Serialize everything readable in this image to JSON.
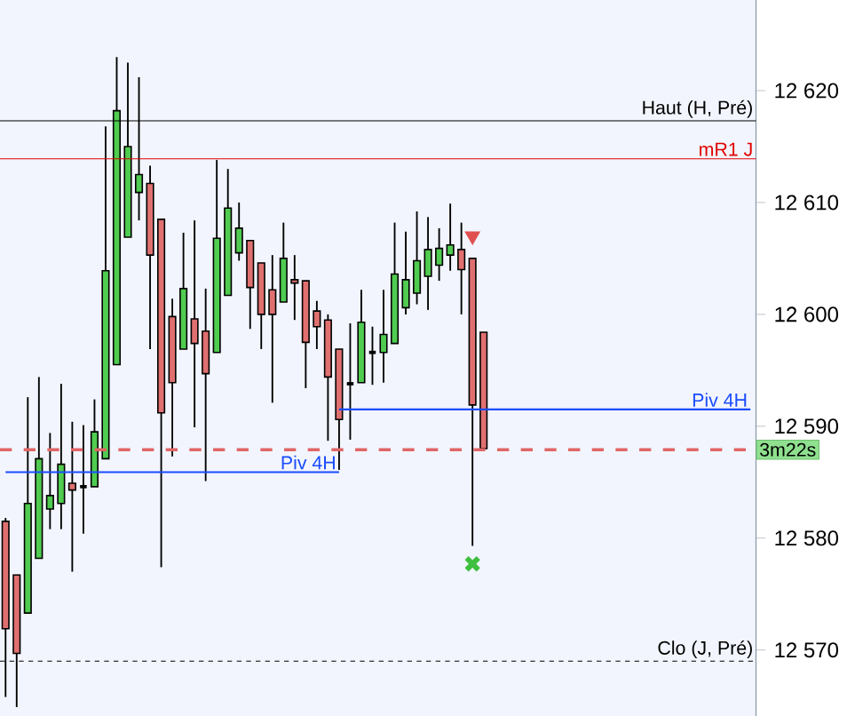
{
  "chart_data": {
    "type": "candlestick",
    "categories": [
      null,
      null,
      null,
      null,
      null,
      null,
      null,
      null,
      null,
      null,
      null,
      null,
      null,
      null,
      null,
      null,
      null,
      null,
      null,
      null,
      null,
      null,
      null,
      null,
      null,
      null,
      null,
      null,
      null,
      null,
      null,
      null,
      null,
      null,
      null,
      null,
      null,
      null,
      null,
      null,
      null,
      null,
      null,
      null,
      null,
      null,
      null,
      null,
      null,
      null,
      null,
      null,
      null,
      null,
      null,
      null,
      null,
      null,
      null,
      null,
      null,
      null,
      null,
      null,
      null,
      null,
      null,
      null
    ],
    "ohlc": [
      [
        12581.5,
        12581.8,
        12565.8,
        12571.9
      ],
      [
        12576.7,
        12576.7,
        12564.9,
        12569.7
      ],
      [
        12573.3,
        12592.6,
        12573.3,
        12583.1
      ],
      [
        12578.2,
        12594.4,
        12578.2,
        12587.1
      ],
      [
        12582.6,
        12589.4,
        12580.8,
        12583.8
      ],
      [
        12583.1,
        12593.8,
        12580.8,
        12586.6
      ],
      [
        12584.9,
        12590.4,
        12577.0,
        12584.3
      ],
      [
        12584.6,
        12590.1,
        12580.4,
        12584.6
      ],
      [
        12584.6,
        12592.4,
        12584.6,
        12589.5
      ],
      [
        12587.1,
        12616.8,
        12587.1,
        12603.9
      ],
      [
        12595.5,
        12623.0,
        12595.5,
        12618.2
      ],
      [
        12606.9,
        12622.5,
        12606.9,
        12615.0
      ],
      [
        12610.9,
        12621.2,
        12608.4,
        12612.5
      ],
      [
        12611.7,
        12613.3,
        12596.9,
        12605.3
      ],
      [
        12608.5,
        12608.5,
        12577.4,
        12591.2
      ],
      [
        12599.8,
        12601.4,
        12587.3,
        12593.9
      ],
      [
        12596.9,
        12607.3,
        12596.9,
        12602.3
      ],
      [
        12599.6,
        12608.4,
        12589.9,
        12597.4
      ],
      [
        12598.5,
        12602.3,
        12585.1,
        12594.7
      ],
      [
        12596.6,
        12613.8,
        12596.6,
        12606.8
      ],
      [
        12601.7,
        12613.0,
        12601.7,
        12609.5
      ],
      [
        12605.5,
        12610.0,
        12604.8,
        12607.7
      ],
      [
        12606.6,
        12606.6,
        12598.7,
        12602.4
      ],
      [
        12604.6,
        12604.6,
        12596.9,
        12600.0
      ],
      [
        12602.2,
        12605.3,
        12592.1,
        12600.0
      ],
      [
        12601.1,
        12608.2,
        12601.1,
        12605.0
      ],
      [
        12603.1,
        12605.3,
        12599.5,
        12602.8
      ],
      [
        12603.0,
        12603.0,
        12593.4,
        12597.5
      ],
      [
        12600.3,
        12601.2,
        12596.9,
        12598.9
      ],
      [
        12599.5,
        12600.0,
        12588.7,
        12594.4
      ],
      [
        12596.9,
        12596.9,
        12586.1,
        12590.6
      ],
      [
        12593.8,
        12599.2,
        12588.8,
        12593.8
      ],
      [
        12593.9,
        12602.2,
        12593.9,
        12599.3
      ],
      [
        12596.6,
        12598.9,
        12593.7,
        12596.6
      ],
      [
        12596.6,
        12602.2,
        12593.9,
        12598.2
      ],
      [
        12597.4,
        12608.2,
        12597.4,
        12603.6
      ],
      [
        12600.6,
        12607.4,
        12600.0,
        12603.1
      ],
      [
        12601.9,
        12609.2,
        12600.9,
        12604.8
      ],
      [
        12603.4,
        12608.7,
        12600.4,
        12605.8
      ],
      [
        12604.4,
        12607.7,
        12603.0,
        12605.9
      ],
      [
        12605.3,
        12609.9,
        12603.9,
        12606.2
      ],
      [
        12605.8,
        12608.2,
        12600.0,
        12604.0
      ],
      [
        12605.0,
        12605.0,
        12579.3,
        12591.9
      ],
      [
        12598.4,
        12598.4,
        12587.9,
        12588.0
      ],
      null,
      null,
      null,
      null,
      null,
      null,
      null,
      null,
      null,
      null,
      null,
      null,
      null,
      null,
      null,
      null,
      null,
      null,
      null,
      null,
      null,
      null,
      null,
      null
    ],
    "colors": [
      "#e07070",
      "#e07070",
      "#50cc50",
      "#50cc50",
      "#50cc50",
      "#50cc50",
      "#e07070",
      "#000000",
      "#50cc50",
      "#50cc50",
      "#50cc50",
      "#50cc50",
      "#50cc50",
      "#e07070",
      "#e07070",
      "#e07070",
      "#50cc50",
      "#e07070",
      "#e07070",
      "#50cc50",
      "#50cc50",
      "#50cc50",
      "#e07070",
      "#e07070",
      "#e07070",
      "#50cc50",
      "#e07070",
      "#e07070",
      "#e07070",
      "#e07070",
      "#e07070",
      "#000000",
      "#50cc50",
      "#000000",
      "#50cc50",
      "#50cc50",
      "#50cc50",
      "#50cc50",
      "#50cc50",
      "#50cc50",
      "#50cc50",
      "#e07070",
      "#e07070",
      "#e07070",
      null,
      null,
      null,
      null,
      null,
      null,
      null,
      null,
      null,
      null,
      null,
      null,
      null,
      null,
      null,
      null,
      null,
      null,
      null,
      null,
      null,
      null,
      null,
      null
    ],
    "series": [
      {
        "type": "line",
        "name": "Piv 4H",
        "color": "#1a4cff",
        "values": [
          12585.9,
          12585.9,
          12585.9,
          12585.9,
          12585.9,
          12585.9,
          12585.9,
          12585.9,
          12585.9,
          12585.9,
          12585.9,
          12585.9,
          12585.9,
          12585.9,
          12585.9,
          12585.9,
          12585.9,
          12585.9,
          12585.9,
          12585.9,
          12585.9,
          12585.9,
          12585.9,
          12585.9,
          12585.9,
          12585.9,
          12585.9,
          12585.9,
          12585.9,
          12585.9,
          12585.9,
          null,
          null,
          null,
          null,
          null,
          null,
          null,
          null,
          null,
          null,
          null,
          null,
          null,
          null,
          null,
          null,
          null,
          null,
          null,
          null,
          null,
          null,
          null,
          null,
          null,
          null,
          null,
          null,
          null,
          null,
          null,
          null,
          null,
          null,
          null,
          null,
          null
        ]
      },
      {
        "type": "line",
        "name": "Piv 4H",
        "color": "#1a4cff",
        "values": [
          null,
          null,
          null,
          null,
          null,
          null,
          null,
          null,
          null,
          null,
          null,
          null,
          null,
          null,
          null,
          null,
          null,
          null,
          null,
          null,
          null,
          null,
          null,
          null,
          null,
          null,
          null,
          null,
          null,
          null,
          12591.5,
          12591.5,
          12591.5,
          12591.5,
          12591.5,
          12591.5,
          12591.5,
          12591.5,
          12591.5,
          12591.5,
          12591.5,
          12591.5,
          12591.5,
          12591.5,
          12591.5,
          12591.5,
          12591.5,
          12591.5,
          12591.5,
          12591.5,
          12591.5,
          12591.5,
          12591.5,
          12591.5,
          12591.5,
          12591.5,
          12591.5,
          12591.5,
          12591.5,
          12591.5,
          12591.5,
          12591.5,
          12591.5,
          12591.5,
          12591.5,
          12591.5,
          12591.5,
          12591.5
        ]
      },
      {
        "type": "scatter",
        "marker": "triangle",
        "color": "#e05050",
        "values": [
          null,
          null,
          null,
          null,
          null,
          null,
          null,
          null,
          null,
          null,
          null,
          null,
          null,
          null,
          null,
          null,
          null,
          null,
          null,
          null,
          null,
          null,
          null,
          null,
          null,
          null,
          null,
          null,
          null,
          null,
          null,
          null,
          null,
          null,
          null,
          null,
          null,
          null,
          null,
          null,
          null,
          null,
          12607.0,
          null,
          null,
          null,
          null,
          null,
          null,
          null,
          null,
          null,
          null,
          null,
          null,
          null,
          null,
          null,
          null,
          null,
          null,
          null,
          null,
          null,
          null,
          null,
          null,
          null
        ]
      },
      {
        "type": "scatter",
        "marker": "cross",
        "color": "#3fbf3f",
        "values": [
          null,
          null,
          null,
          null,
          null,
          null,
          null,
          null,
          null,
          null,
          null,
          null,
          null,
          null,
          null,
          null,
          null,
          null,
          null,
          null,
          null,
          null,
          null,
          null,
          null,
          null,
          null,
          null,
          null,
          null,
          null,
          null,
          null,
          null,
          null,
          null,
          null,
          null,
          null,
          null,
          null,
          null,
          12577.7,
          null,
          null,
          null,
          null,
          null,
          null,
          null,
          null,
          null,
          null,
          null,
          null,
          null,
          null,
          null,
          null,
          null,
          null,
          null,
          null,
          null,
          null,
          null,
          null,
          null
        ]
      }
    ],
    "ref_lines": [
      {
        "axis": "y",
        "value": 12617.3,
        "label": "Haut (H, Pré)",
        "color": "#000000",
        "line_style": "solid"
      },
      {
        "axis": "y",
        "value": 12613.9,
        "label": "mR1 J",
        "color": "#e00000",
        "line_style": "solid"
      },
      {
        "axis": "y",
        "value": 12587.9,
        "label": "3m22s",
        "color": "#e06666",
        "line_style": "dashed"
      },
      {
        "axis": "y",
        "value": 12569.0,
        "label": "Clo (J, Pré)",
        "color": "#000000",
        "line_style": "dotted"
      }
    ],
    "ylim": [
      12564.1,
      12628.1
    ],
    "yticks": [
      {
        "value": 12570,
        "label": "12 570"
      },
      {
        "value": 12580,
        "label": "12 580"
      },
      {
        "value": 12590,
        "label": "12 590"
      },
      {
        "value": 12600,
        "label": "12 600"
      },
      {
        "value": 12610,
        "label": "12 610"
      },
      {
        "value": 12620,
        "label": "12 620"
      }
    ],
    "tick_labels": "y"
  }
}
